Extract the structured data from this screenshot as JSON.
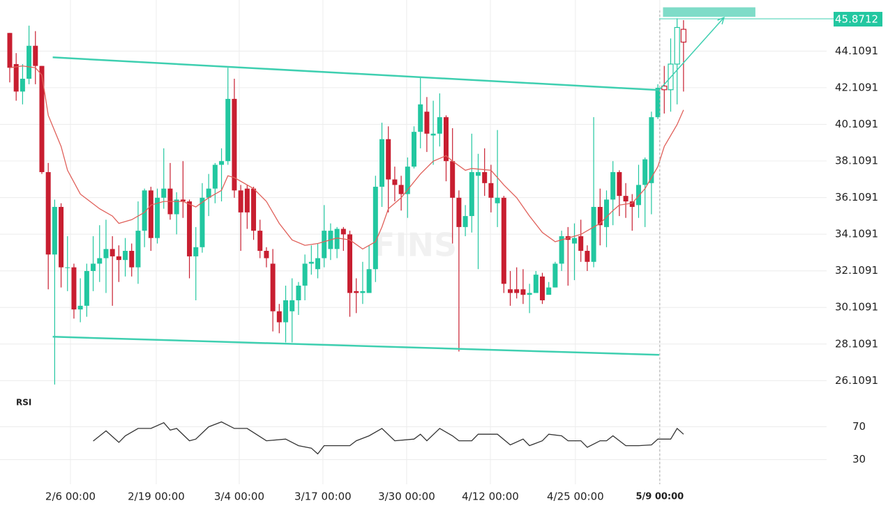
{
  "chart_data": {
    "type": "candlestick",
    "up_color": "#22c7a0",
    "down_color": "#c81e30",
    "xlim": [
      -1.52,
      127.3
    ],
    "ylim": [
      25.4,
      46.9
    ],
    "yticks": [
      26.1091,
      28.1091,
      30.1091,
      32.1091,
      34.1091,
      36.1091,
      38.1091,
      40.1091,
      42.1091,
      44.1091
    ],
    "xticks": [
      {
        "value": 9.46,
        "label": "2/6 00:00"
      },
      {
        "value": 22.83,
        "label": "2/19 00:00"
      },
      {
        "value": 35.76,
        "label": "3/4 00:00"
      },
      {
        "value": 48.8,
        "label": "3/17 00:00"
      },
      {
        "value": 61.85,
        "label": "3/30 00:00"
      },
      {
        "value": 74.9,
        "label": "4/12 00:00"
      },
      {
        "value": 88.15,
        "label": "4/25 00:00"
      },
      {
        "value": 101.3,
        "label": "5/9 00:00"
      }
    ],
    "grid": true,
    "last_price": 45.8712,
    "watermark": "FINS",
    "candles": [
      [
        45.1,
        45.1,
        42.4,
        43.2
      ],
      [
        43.4,
        44,
        41.4,
        41.9
      ],
      [
        41.9,
        43.4,
        41.2,
        42.6
      ],
      [
        42.6,
        45.5,
        42.3,
        44.4
      ],
      [
        44.4,
        45.2,
        42.3,
        43.3
      ],
      [
        43.3,
        43.3,
        37.4,
        37.5
      ],
      [
        37.5,
        38,
        31.1,
        33.0
      ],
      [
        33.0,
        36,
        25.9,
        35.6
      ],
      [
        35.6,
        35.8,
        31.2,
        32.3
      ],
      [
        32.3,
        34,
        31,
        32.3
      ],
      [
        32.3,
        32.5,
        29.5,
        30.0
      ],
      [
        30.0,
        31.7,
        29.3,
        30.2
      ],
      [
        30.2,
        32.5,
        29.6,
        32.1
      ],
      [
        32.1,
        34,
        31,
        32.5
      ],
      [
        32.5,
        34.6,
        31.5,
        32.8
      ],
      [
        32.8,
        34.9,
        30.9,
        33.3
      ],
      [
        33.3,
        34,
        30.2,
        32.9
      ],
      [
        32.9,
        33.5,
        31.5,
        32.7
      ],
      [
        32.7,
        33.9,
        31.8,
        33.2
      ],
      [
        33.2,
        33.6,
        31.8,
        32.3
      ],
      [
        32.3,
        35.9,
        31.4,
        34.3
      ],
      [
        34.3,
        36.6,
        33.4,
        36.5
      ],
      [
        36.5,
        36.7,
        33.2,
        33.9
      ],
      [
        33.9,
        36.6,
        33.6,
        36.1
      ],
      [
        36.1,
        38.8,
        35.5,
        36.6
      ],
      [
        36.6,
        38,
        34.9,
        35.2
      ],
      [
        35.2,
        36.4,
        34.1,
        36.0
      ],
      [
        36.0,
        38.1,
        35,
        35.9
      ],
      [
        35.9,
        36,
        31.7,
        32.9
      ],
      [
        32.9,
        34.5,
        30.5,
        33.4
      ],
      [
        33.4,
        36.9,
        33.1,
        36.1
      ],
      [
        36.1,
        37.4,
        35.1,
        36.6
      ],
      [
        36.6,
        38,
        35.8,
        37.9
      ],
      [
        37.9,
        38.8,
        35.9,
        38.1
      ],
      [
        38.1,
        43.2,
        37.9,
        41.5
      ],
      [
        41.5,
        42.6,
        36.1,
        36.5
      ],
      [
        36.5,
        36.8,
        33.2,
        35.3
      ],
      [
        36.6,
        36.8,
        34.4,
        35.3
      ],
      [
        36.6,
        36.7,
        33.8,
        34.3
      ],
      [
        34.3,
        34.9,
        32.8,
        33.2
      ],
      [
        33.2,
        33.4,
        32.3,
        32.8
      ],
      [
        32.5,
        33.3,
        28.8,
        29.9
      ],
      [
        29.9,
        30.3,
        28.7,
        29.3
      ],
      [
        29.3,
        31.3,
        28.2,
        30.5
      ],
      [
        29.9,
        31.7,
        28.2,
        30.5
      ],
      [
        30.5,
        31.5,
        29.7,
        31.3
      ],
      [
        31.3,
        33,
        30.5,
        32.5
      ],
      [
        32.5,
        33.5,
        31.9,
        32.6
      ],
      [
        32.2,
        33.6,
        31.7,
        32.8
      ],
      [
        32.8,
        35.7,
        32.3,
        34.3
      ],
      [
        33.3,
        34.7,
        32.7,
        34.3
      ],
      [
        33.3,
        34.5,
        32.8,
        34.4
      ],
      [
        34.4,
        34.5,
        33.2,
        34.1
      ],
      [
        34.1,
        34.3,
        29.6,
        30.9
      ],
      [
        31.0,
        31.7,
        29.8,
        30.9
      ],
      [
        30.9,
        32.6,
        30.3,
        31.0
      ],
      [
        30.9,
        33.5,
        30.9,
        32.2
      ],
      [
        32.2,
        37.3,
        31.5,
        36.7
      ],
      [
        36.7,
        40.2,
        35.6,
        39.3
      ],
      [
        39.3,
        40,
        35.3,
        37.1
      ],
      [
        37.1,
        37.8,
        35.9,
        36.8
      ],
      [
        36.8,
        37.3,
        35.4,
        36.3
      ],
      [
        36.3,
        38.3,
        35.0,
        37.8
      ],
      [
        37.8,
        40,
        37.7,
        39.7
      ],
      [
        39.7,
        42.7,
        38.8,
        41.2
      ],
      [
        40.8,
        41.6,
        38.6,
        39.6
      ],
      [
        39.5,
        41.4,
        37.9,
        39.6
      ],
      [
        39.6,
        41.8,
        38.9,
        40.5
      ],
      [
        40.5,
        40.6,
        37.0,
        38.1
      ],
      [
        38.1,
        39.9,
        33.6,
        36.1
      ],
      [
        36.1,
        36.5,
        27.7,
        34.5
      ],
      [
        34.5,
        35.7,
        34.0,
        35.1
      ],
      [
        35.1,
        39.6,
        34.2,
        37.5
      ],
      [
        37.3,
        38.5,
        32.2,
        37.5
      ],
      [
        37.5,
        38.8,
        36.2,
        36.9
      ],
      [
        36.9,
        37.9,
        35.3,
        36.1
      ],
      [
        35.8,
        39.8,
        34.5,
        36.1
      ],
      [
        36.1,
        36.2,
        30.9,
        31.4
      ],
      [
        31.1,
        32.1,
        30.2,
        30.9
      ],
      [
        31.1,
        32.3,
        30.6,
        30.9
      ],
      [
        31.1,
        32.2,
        30.3,
        30.8
      ],
      [
        30.8,
        31.4,
        29.8,
        30.9
      ],
      [
        30.9,
        32.1,
        30.9,
        31.9
      ],
      [
        31.8,
        32.0,
        30.3,
        30.5
      ],
      [
        30.8,
        31.5,
        30.9,
        31.2
      ],
      [
        31.2,
        32.6,
        31.2,
        32.5
      ],
      [
        32.5,
        34.3,
        32.1,
        34.0
      ],
      [
        34.0,
        34.5,
        31.3,
        33.8
      ],
      [
        33.6,
        34.7,
        31.6,
        33.9
      ],
      [
        34.0,
        34.9,
        32.6,
        33.2
      ],
      [
        33.2,
        33.5,
        32.1,
        32.6
      ],
      [
        32.6,
        40.5,
        32.3,
        35.6
      ],
      [
        35.6,
        36.6,
        33.5,
        34.6
      ],
      [
        34.5,
        36.5,
        33.4,
        36.0
      ],
      [
        36.0,
        38.1,
        34.6,
        37.5
      ],
      [
        37.5,
        37.6,
        35.1,
        36.2
      ],
      [
        36.2,
        36.9,
        35.0,
        35.9
      ],
      [
        35.9,
        36.3,
        34.3,
        35.6
      ],
      [
        35.7,
        37.9,
        35.0,
        36.8
      ],
      [
        36.8,
        38.3,
        34.5,
        38.2
      ],
      [
        36.9,
        40.8,
        35.2,
        40.5
      ],
      [
        40.5,
        42.3,
        40.4,
        42.1
      ]
    ],
    "forecast_candles": [
      [
        42.2,
        43.3,
        40.7,
        42.0
      ],
      [
        42.0,
        44.8,
        40.8,
        43.4
      ],
      [
        43.4,
        45.9,
        41.2,
        45.4
      ],
      [
        45.3,
        45.8,
        41.9,
        44.6
      ]
    ],
    "ma": {
      "color": "#e0605a",
      "x": [
        0,
        2,
        4,
        5,
        6,
        8,
        9,
        11,
        14,
        16,
        17,
        19,
        21,
        22,
        24,
        27,
        29,
        31,
        33,
        34,
        35,
        38,
        40,
        42,
        44,
        46,
        48,
        51,
        53,
        55,
        57,
        58,
        59,
        61,
        64,
        66,
        68,
        69,
        71,
        72,
        75,
        77,
        79,
        81,
        83,
        85,
        87,
        89,
        90,
        92,
        94,
        95,
        97,
        99,
        101,
        102,
        104,
        105
      ],
      "values": [
        43.2,
        43.3,
        43.2,
        42.8,
        40.6,
        38.9,
        37.6,
        36.3,
        35.5,
        35.1,
        34.7,
        34.9,
        35.3,
        35.7,
        35.9,
        35.9,
        35.6,
        36.1,
        36.5,
        37.3,
        37.2,
        36.6,
        35.9,
        34.7,
        33.8,
        33.5,
        33.6,
        33.9,
        33.8,
        33.3,
        33.7,
        34.5,
        35.5,
        36.1,
        37.4,
        38.1,
        38.4,
        38.1,
        37.6,
        37.7,
        37.6,
        36.8,
        36.1,
        35.1,
        34.2,
        33.7,
        33.9,
        34.1,
        34.3,
        34.7,
        35.4,
        35.7,
        35.8,
        36.6,
        37.8,
        38.9,
        40.1,
        40.9
      ]
    },
    "trend_lines": [
      {
        "x": [
          6.7,
          101.2
        ],
        "y": [
          43.77,
          41.98
        ]
      },
      {
        "x": [
          6.7,
          101.2
        ],
        "y": [
          28.51,
          27.52
        ]
      }
    ],
    "arrow": {
      "x": [
        101.2,
        111.3
      ],
      "y": [
        41.98,
        45.94
      ]
    },
    "zone": {
      "x": [
        101.8,
        116.2
      ],
      "y": [
        45.98,
        46.5
      ]
    },
    "rsi": {
      "title": "RSI",
      "color": "#333333",
      "ylim": [
        0,
        90
      ],
      "yticks": [
        30,
        70
      ],
      "x": [
        13,
        15,
        17,
        18,
        20,
        22,
        24,
        25,
        26,
        28,
        29,
        31,
        33,
        35,
        37,
        39,
        40,
        43,
        45,
        47,
        48,
        49,
        53,
        54,
        56,
        58,
        60,
        63,
        64,
        65,
        67,
        69,
        70,
        72,
        73,
        76,
        78,
        80,
        81,
        83,
        84,
        86,
        87,
        89,
        90,
        92,
        93,
        94,
        96,
        98,
        100,
        101,
        103,
        104,
        105
      ],
      "values": [
        52.6,
        65,
        51,
        59,
        68,
        68,
        75,
        66,
        68,
        53,
        55,
        70,
        76,
        68,
        68,
        58,
        53,
        55,
        47,
        44,
        37,
        47,
        47,
        53,
        59,
        68,
        53,
        55,
        61,
        53,
        68,
        59,
        53,
        53,
        61,
        61,
        48,
        55,
        47,
        53,
        61,
        59,
        53,
        53,
        45,
        53,
        53,
        59,
        47,
        47,
        48,
        55,
        55,
        68,
        61
      ]
    }
  }
}
